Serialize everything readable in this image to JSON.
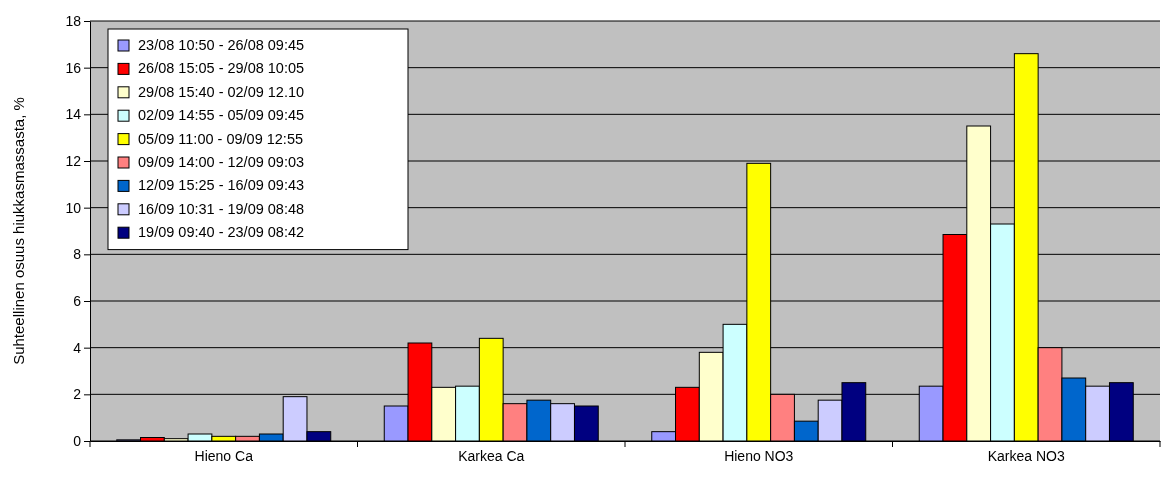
{
  "chart_data": {
    "type": "bar",
    "ylabel": "Suhteellinen osuus hiukkasmassasta, %",
    "categories": [
      "Hieno Ca",
      "Karkea Ca",
      "Hieno NO3",
      "Karkea NO3"
    ],
    "series": [
      {
        "name": "23/08 10:50 - 26/08 09:45",
        "color": "#9999ff",
        "values": [
          0.05,
          1.5,
          0.4,
          2.35
        ]
      },
      {
        "name": "26/08 15:05 - 29/08 10:05",
        "color": "#ff0000",
        "values": [
          0.15,
          4.2,
          2.3,
          8.85
        ]
      },
      {
        "name": "29/08 15:40 - 02/09 12.10",
        "color": "#ffffcc",
        "values": [
          0.1,
          2.3,
          3.8,
          13.5
        ]
      },
      {
        "name": "02/09 14:55 - 05/09 09:45",
        "color": "#ccffff",
        "values": [
          0.3,
          2.35,
          5.0,
          9.3
        ]
      },
      {
        "name": "05/09 11:00 - 09/09 12:55",
        "color": "#ffff00",
        "values": [
          0.2,
          4.4,
          11.9,
          16.6
        ]
      },
      {
        "name": "09/09 14:00 - 12/09 09:03",
        "color": "#ff8080",
        "values": [
          0.2,
          1.6,
          2.0,
          4.0
        ]
      },
      {
        "name": "12/09 15:25 - 16/09 09:43",
        "color": "#0066cc",
        "values": [
          0.3,
          1.75,
          0.85,
          2.7
        ]
      },
      {
        "name": "16/09 10:31 - 19/09 08:48",
        "color": "#ccccff",
        "values": [
          1.9,
          1.6,
          1.75,
          2.35
        ]
      },
      {
        "name": "19/09 09:40 - 23/09 08:42",
        "color": "#000080",
        "values": [
          0.4,
          1.5,
          2.5,
          2.5
        ]
      }
    ],
    "ylim": [
      0,
      18
    ],
    "yticks": [
      0,
      2,
      4,
      6,
      8,
      10,
      12,
      14,
      16,
      18
    ],
    "grid": "y",
    "legend": "top left"
  }
}
